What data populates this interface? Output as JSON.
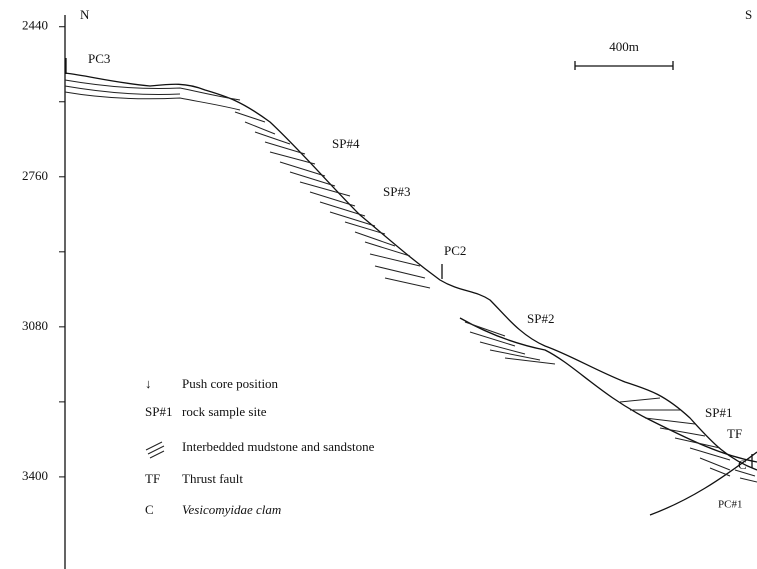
{
  "depth_axis": {
    "lim": [
      2415,
      3590
    ],
    "ticks": [
      2440,
      2760,
      3080,
      3400
    ],
    "minor_ticks": [
      2600,
      2920,
      3240
    ]
  },
  "labels": {
    "north": "N",
    "south": "S",
    "pc3": "PC3",
    "sp4": "SP#4",
    "sp3": "SP#3",
    "pc2": "PC2",
    "sp2": "SP#2",
    "sp1": "SP#1",
    "tf": "TF",
    "c": "C",
    "pc1": "PC#1"
  },
  "scale_bar": "400m",
  "legend": [
    {
      "symbol": "↓",
      "text": "Push core position"
    },
    {
      "symbol": "SP#1",
      "text": "rock sample site"
    },
    {
      "symbol": "",
      "text": "Interbedded mudstone and sandstone"
    },
    {
      "symbol": "TF",
      "text": "Thrust fault"
    },
    {
      "symbol": "C",
      "text": "Vesicomyidae clam"
    }
  ]
}
